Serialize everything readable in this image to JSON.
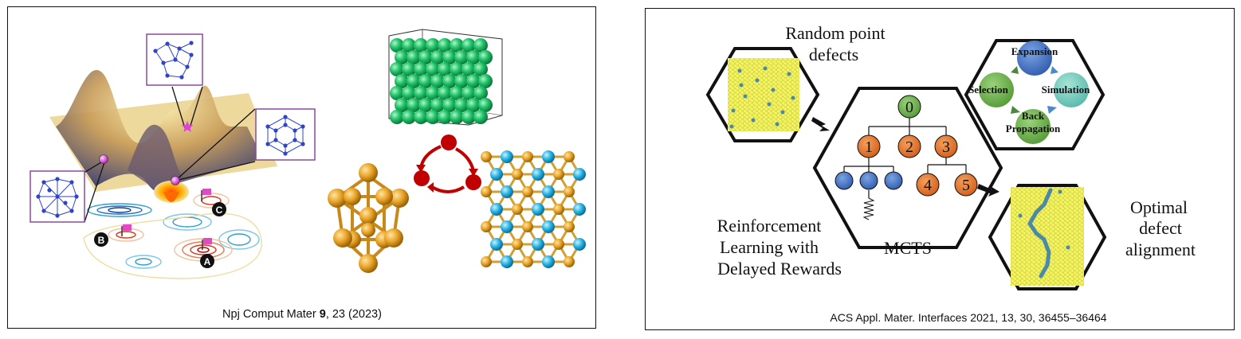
{
  "left_panel": {
    "citation": {
      "journal": "Npj Comput Mater ",
      "volume": "9",
      "rest": ", 23 (2023)"
    },
    "markers": [
      "A",
      "B",
      "C"
    ]
  },
  "right_panel": {
    "labels": {
      "random_point_defects": [
        "Random point",
        "defects"
      ],
      "reinforcement": [
        "Reinforcement",
        "Learning with",
        "Delayed Rewards"
      ],
      "mcts": "MCTS",
      "optimal": [
        "Optimal",
        "defect",
        "alignment"
      ]
    },
    "cycle": {
      "expansion": "Expansion",
      "selection": "Selection",
      "simulation": "Simulation",
      "backprop": [
        "Back",
        "Propagation"
      ]
    },
    "tree_nodes": [
      "0",
      "1",
      "2",
      "3",
      "4",
      "5"
    ],
    "citation": "ACS Appl. Mater. Interfaces 2021, 13, 30, 36455–36464"
  },
  "colors": {
    "orange_node": "#e8742c",
    "green_node": "#6aa84f",
    "blue_node": "#4a78c2",
    "gold": "#e8a327",
    "cyan": "#27b3e4",
    "green_sphere": "#22c46a",
    "red_dot": "#c00000",
    "magenta": "#d94fd0"
  }
}
